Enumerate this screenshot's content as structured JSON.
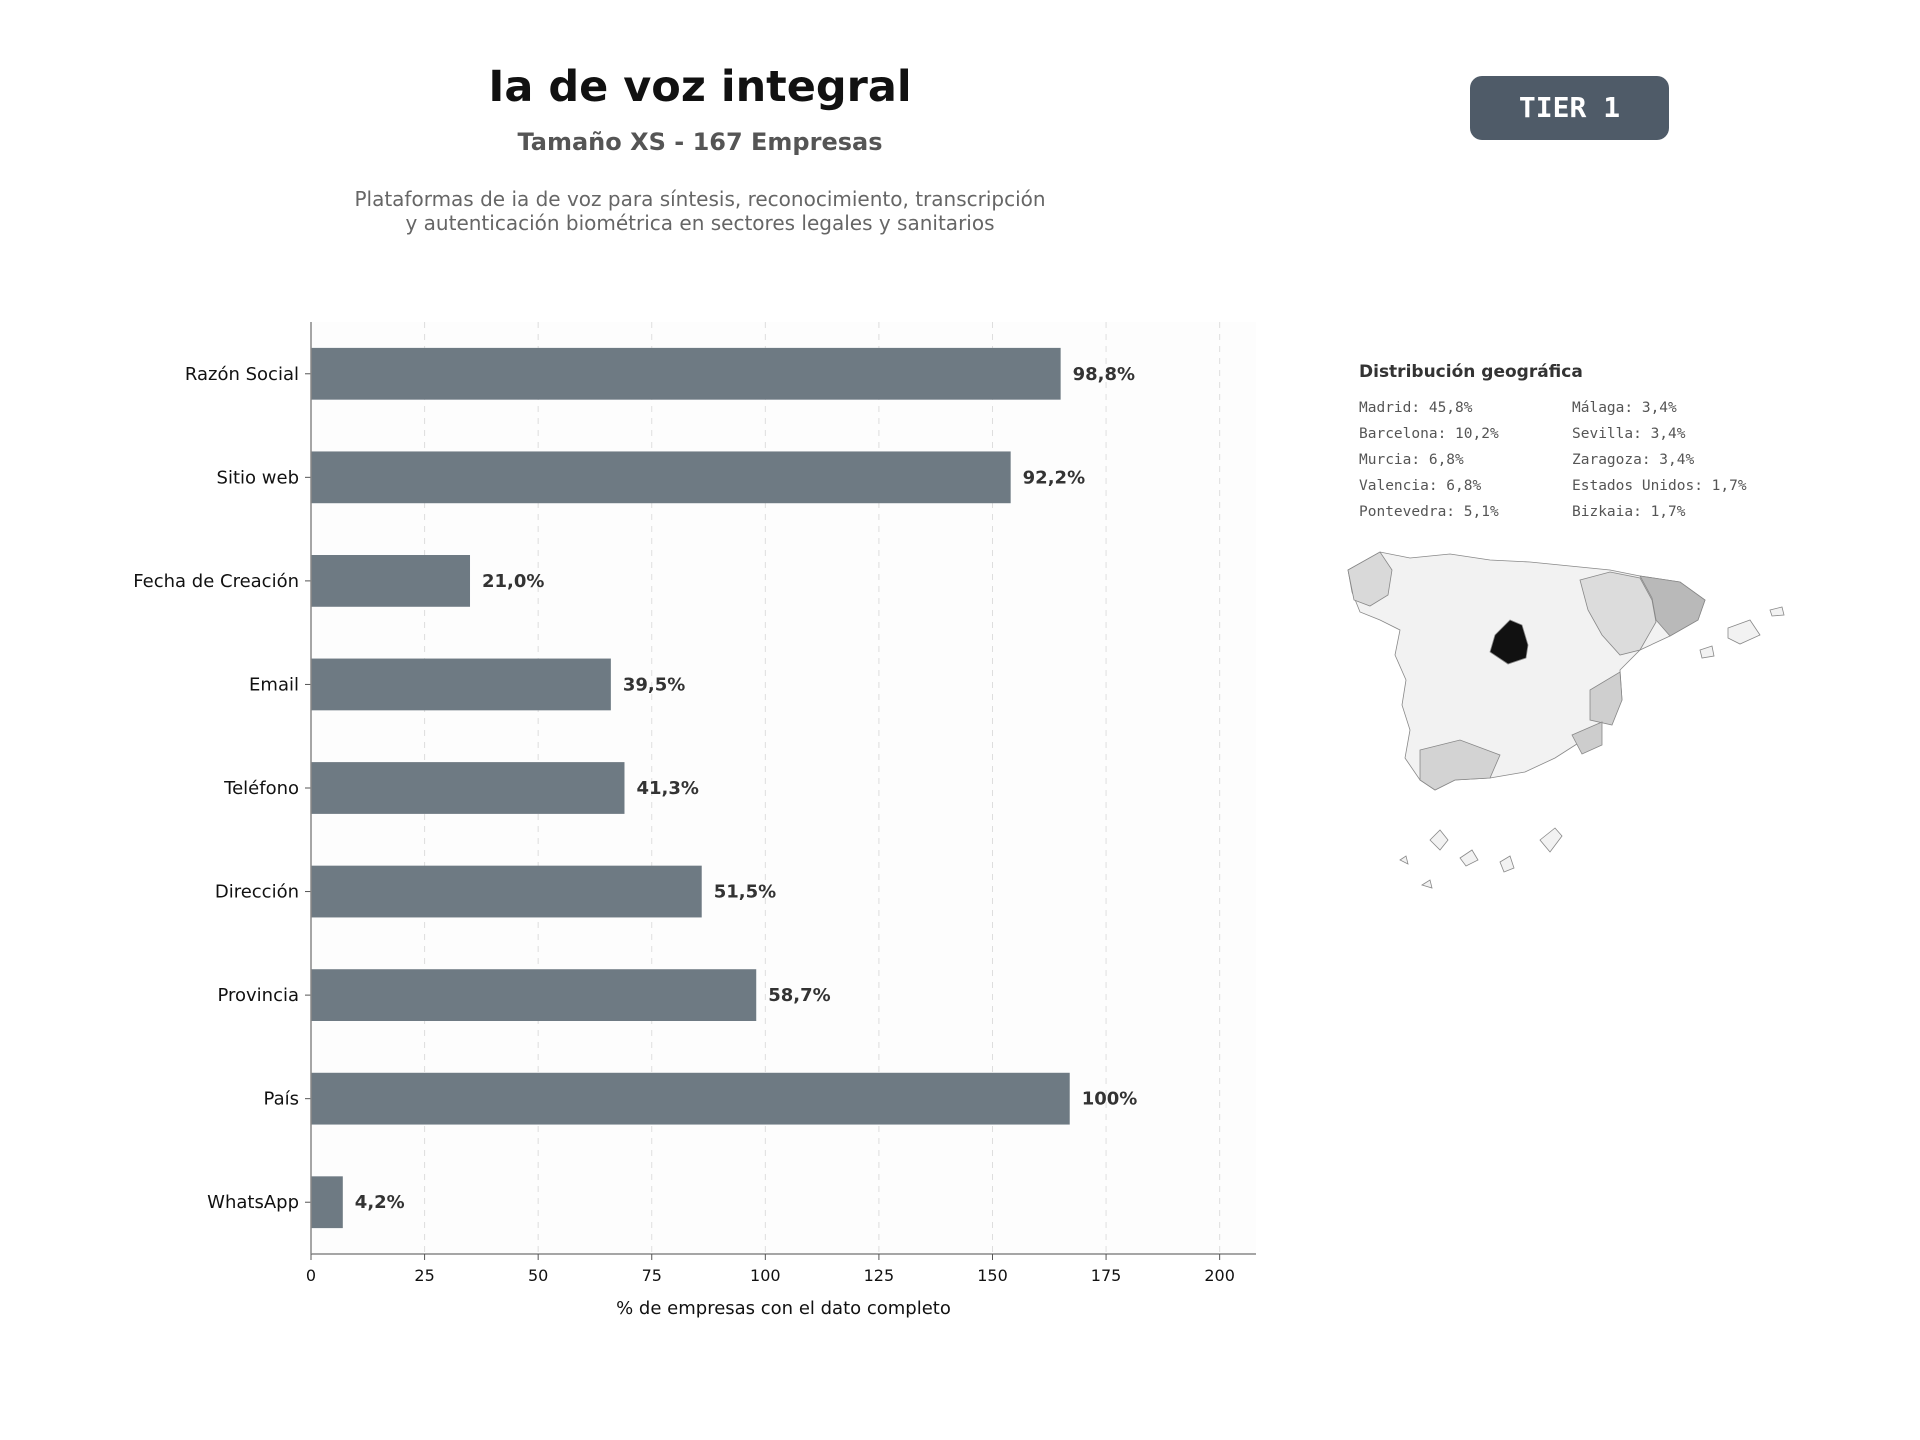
{
  "header": {
    "title": "Ia de voz integral",
    "subtitle": "Tamaño XS - 167 Empresas",
    "description_lines": [
      "Plataformas de ia de voz para síntesis, reconocimiento, transcripción",
      "y autenticación biométrica en sectores legales y sanitarios"
    ]
  },
  "tier_badge": "TIER 1",
  "colors": {
    "bar": "#6e7a83",
    "badge": "#4f5b68"
  },
  "chart_data": {
    "type": "bar",
    "orientation": "horizontal",
    "categories": [
      "Razón Social",
      "Sitio web",
      "Fecha de Creación",
      "Email",
      "Teléfono",
      "Dirección",
      "Provincia",
      "País",
      "WhatsApp"
    ],
    "values": [
      165,
      154,
      35,
      66,
      69,
      86,
      98,
      167,
      7
    ],
    "value_labels": [
      "98,8%",
      "92,2%",
      "21,0%",
      "39,5%",
      "41,3%",
      "51,5%",
      "58,7%",
      "100%",
      "4,2%"
    ],
    "xlabel": "% de empresas con el dato completo",
    "xlim": [
      0,
      208
    ],
    "xticks": [
      0,
      25,
      50,
      75,
      100,
      125,
      150,
      175,
      200
    ],
    "grid": true
  },
  "geo": {
    "title": "Distribución geográfica",
    "left_col": [
      "Madrid: 45,8%",
      "Barcelona: 10,2%",
      "Murcia: 6,8%",
      "Valencia: 6,8%",
      "Pontevedra: 5,1%"
    ],
    "right_col": [
      "Málaga: 3,4%",
      "Sevilla: 3,4%",
      "Zaragoza: 3,4%",
      "Estados Unidos: 1,7%",
      "Bizkaia: 1,7%"
    ]
  }
}
